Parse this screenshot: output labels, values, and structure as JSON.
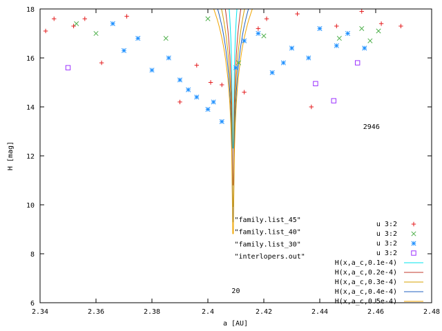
{
  "chart_data": {
    "type": "scatter",
    "xlabel": "a [AU]",
    "ylabel": "H [mag]",
    "xlim": [
      2.34,
      2.48
    ],
    "ylim": [
      6,
      18
    ],
    "xticks": [
      "2.34",
      "2.36",
      "2.38",
      "2.4",
      "2.42",
      "2.44",
      "2.46",
      "2.48"
    ],
    "yticks": [
      "6",
      "8",
      "10",
      "12",
      "14",
      "16",
      "18"
    ],
    "tick_values_x": [
      2.34,
      2.36,
      2.38,
      2.4,
      2.42,
      2.44,
      2.46,
      2.48
    ],
    "tick_values_y": [
      6,
      8,
      10,
      12,
      14,
      16,
      18
    ],
    "grid": false,
    "legend_position": "bottom-right",
    "annotations": [
      {
        "text": "2946",
        "x": 2.4555,
        "y": 13.1
      },
      {
        "text": "20",
        "x": 2.4085,
        "y": 6.4
      },
      {
        "text": "\"family.list_45\"",
        "x": 2.4095,
        "y": 9.3
      },
      {
        "text": "\"family.list_40\"",
        "x": 2.4095,
        "y": 8.8
      },
      {
        "text": "\"family.list_30\"",
        "x": 2.4095,
        "y": 8.3
      },
      {
        "text": "\"interlopers.out\"",
        "x": 2.4095,
        "y": 7.8
      }
    ],
    "series": [
      {
        "name": "u 3:2",
        "marker": "plus",
        "color": "#e41a1c",
        "points": [
          [
            2.342,
            17.1
          ],
          [
            2.345,
            17.6
          ],
          [
            2.352,
            17.3
          ],
          [
            2.356,
            17.6
          ],
          [
            2.362,
            15.8
          ],
          [
            2.371,
            17.7
          ],
          [
            2.39,
            14.2
          ],
          [
            2.396,
            15.7
          ],
          [
            2.401,
            15.0
          ],
          [
            2.405,
            14.9
          ],
          [
            2.413,
            14.6
          ],
          [
            2.418,
            17.2
          ],
          [
            2.421,
            17.6
          ],
          [
            2.432,
            17.8
          ],
          [
            2.437,
            14.0
          ],
          [
            2.446,
            17.3
          ],
          [
            2.455,
            17.9
          ],
          [
            2.462,
            17.4
          ],
          [
            2.469,
            17.3
          ]
        ]
      },
      {
        "name": "u 3:2",
        "marker": "cross",
        "color": "#4daf4a",
        "points": [
          [
            2.353,
            17.4
          ],
          [
            2.36,
            17.0
          ],
          [
            2.385,
            16.8
          ],
          [
            2.4,
            17.6
          ],
          [
            2.411,
            15.8
          ],
          [
            2.42,
            16.9
          ],
          [
            2.447,
            16.8
          ],
          [
            2.455,
            17.2
          ],
          [
            2.458,
            16.7
          ],
          [
            2.461,
            17.1
          ]
        ]
      },
      {
        "name": "u 3:2",
        "marker": "star",
        "color": "#1e90ff",
        "points": [
          [
            2.366,
            17.4
          ],
          [
            2.37,
            16.3
          ],
          [
            2.375,
            16.8
          ],
          [
            2.38,
            15.5
          ],
          [
            2.386,
            16.0
          ],
          [
            2.39,
            15.1
          ],
          [
            2.393,
            14.7
          ],
          [
            2.396,
            14.4
          ],
          [
            2.4,
            13.9
          ],
          [
            2.402,
            14.2
          ],
          [
            2.405,
            13.4
          ],
          [
            2.41,
            15.6
          ],
          [
            2.413,
            16.7
          ],
          [
            2.418,
            17.0
          ],
          [
            2.423,
            15.4
          ],
          [
            2.427,
            15.8
          ],
          [
            2.43,
            16.4
          ],
          [
            2.436,
            16.0
          ],
          [
            2.44,
            17.2
          ],
          [
            2.446,
            16.5
          ],
          [
            2.45,
            17.0
          ],
          [
            2.456,
            16.4
          ]
        ]
      },
      {
        "name": "u 3:2",
        "marker": "square",
        "color": "#9b30ff",
        "points": [
          [
            2.35,
            15.6
          ],
          [
            2.4385,
            14.95
          ],
          [
            2.445,
            14.25
          ],
          [
            2.4535,
            15.8
          ]
        ]
      },
      {
        "name": "H(x,a_c,0.1e-4)",
        "type": "line",
        "color": "#00e5ee",
        "C": 0.1
      },
      {
        "name": "H(x,a_c,0.2e-4)",
        "type": "line",
        "color": "#c0392b",
        "C": 0.2
      },
      {
        "name": "H(x,a_c,0.3e-4)",
        "type": "line",
        "color": "#d4a000",
        "C": 0.3
      },
      {
        "name": "H(x,a_c,0.4e-4)",
        "type": "line",
        "color": "#1f5fbf",
        "C": 0.4
      },
      {
        "name": "H(x,a_c,0.5e-4)",
        "type": "line",
        "color": "#f0a500",
        "C": 0.5
      }
    ],
    "a_c": 2.409
  }
}
